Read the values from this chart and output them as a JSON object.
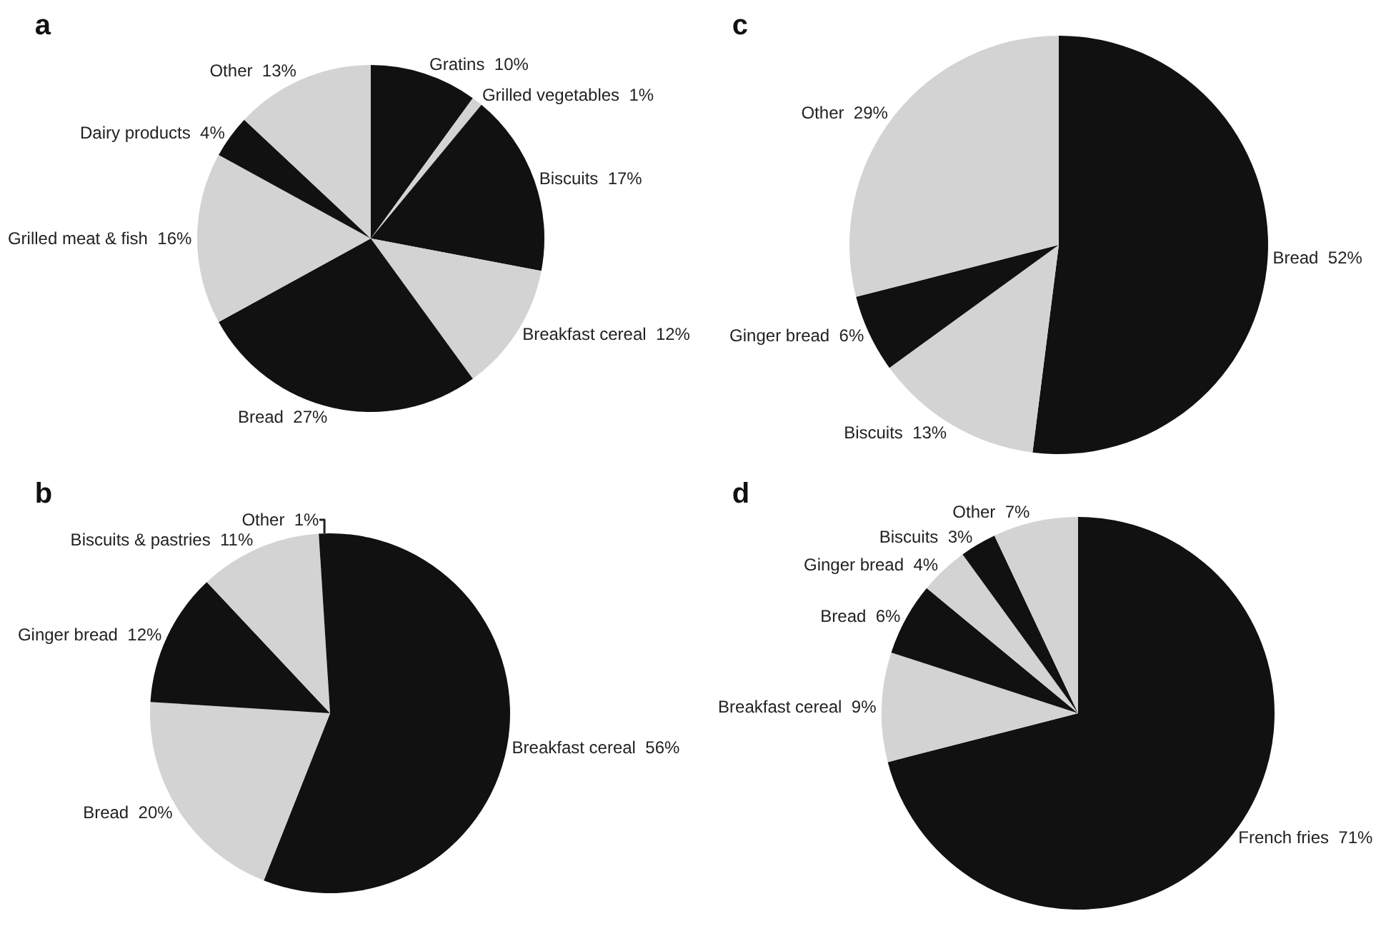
{
  "chart_data": [
    {
      "type": "pie",
      "title": "a",
      "categories": [
        "Gratins",
        "Grilled vegetables",
        "Biscuits",
        "Breakfast cereal",
        "Bread",
        "Grilled meat & fish",
        "Dairy products",
        "Other"
      ],
      "values": [
        10,
        1,
        17,
        12,
        27,
        16,
        4,
        13
      ],
      "value_labels": [
        "10%",
        "1%",
        "17%",
        "12%",
        "27%",
        "16%",
        "4%",
        "13%"
      ],
      "colors": [
        "#111111",
        "#d3d3d3",
        "#111111",
        "#d3d3d3",
        "#111111",
        "#d3d3d3",
        "#111111",
        "#d3d3d3"
      ]
    },
    {
      "type": "pie",
      "title": "b",
      "categories": [
        "Breakfast cereal",
        "Bread",
        "Ginger bread",
        "Biscuits & pastries",
        "Other"
      ],
      "values": [
        56,
        20,
        12,
        11,
        1
      ],
      "value_labels": [
        "56%",
        "20%",
        "12%",
        "11%",
        "1%"
      ],
      "colors": [
        "#111111",
        "#d3d3d3",
        "#111111",
        "#d3d3d3",
        "#111111"
      ]
    },
    {
      "type": "pie",
      "title": "c",
      "categories": [
        "Bread",
        "Biscuits",
        "Ginger bread",
        "Other"
      ],
      "values": [
        52,
        13,
        6,
        29
      ],
      "value_labels": [
        "52%",
        "13%",
        "6%",
        "29%"
      ],
      "colors": [
        "#111111",
        "#d3d3d3",
        "#111111",
        "#d3d3d3"
      ]
    },
    {
      "type": "pie",
      "title": "d",
      "categories": [
        "French fries",
        "Breakfast cereal",
        "Bread",
        "Ginger bread",
        "Biscuits",
        "Other"
      ],
      "values": [
        71,
        9,
        6,
        4,
        3,
        7
      ],
      "value_labels": [
        "71%",
        "9%",
        "6%",
        "4%",
        "3%",
        "7%"
      ],
      "colors": [
        "#111111",
        "#d3d3d3",
        "#111111",
        "#d3d3d3",
        "#111111",
        "#d3d3d3"
      ]
    }
  ]
}
